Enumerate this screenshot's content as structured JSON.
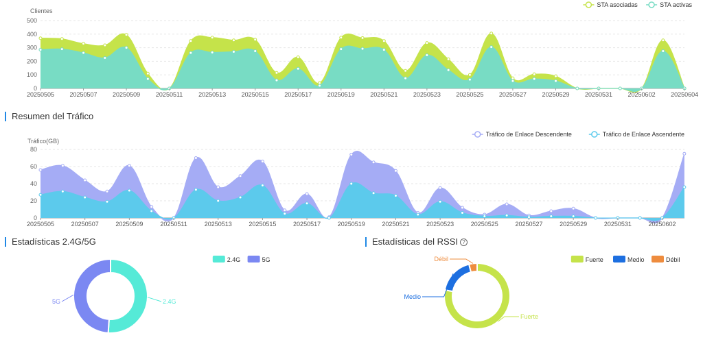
{
  "clients_chart": {
    "ylabel": "Clientes",
    "legend": [
      {
        "name": "STA asociadas",
        "color": "#c5e34a"
      },
      {
        "name": "STA activas",
        "color": "#78dcc4"
      }
    ]
  },
  "traffic_section": {
    "title": "Resumen del Tráfico"
  },
  "traffic_chart": {
    "ylabel": "Tráfico(GB)",
    "legend": [
      {
        "name": "Tráfico de Enlace Descendente",
        "color": "#a5acf5"
      },
      {
        "name": "Tráfico de Enlace Ascendente",
        "color": "#5ccaec"
      }
    ]
  },
  "band_section": {
    "title": "Estadísticas 2.4G/5G",
    "legend": [
      "2.4G",
      "5G"
    ]
  },
  "rssi_section": {
    "title": "Estadísticas del RSSI",
    "help_icon": "question-circle-icon",
    "legend": [
      "Fuerte",
      "Medio",
      "Débil"
    ]
  },
  "chart_data": [
    {
      "type": "area",
      "ylabel": "Clientes",
      "ylim": [
        0,
        500
      ],
      "yticks": [
        0,
        100,
        200,
        300,
        400,
        500
      ],
      "grid": true,
      "legend_position": "top-right",
      "x_tick_labels": [
        "20250505",
        "20250507",
        "20250509",
        "20250511",
        "20250513",
        "20250515",
        "20250517",
        "20250519",
        "20250521",
        "20250523",
        "20250525",
        "20250527",
        "20250529",
        "20250531",
        "20250602",
        "20250604"
      ],
      "x": [
        "20250505",
        "20250506",
        "20250507",
        "20250508",
        "20250509",
        "20250510",
        "20250511",
        "20250512",
        "20250513",
        "20250514",
        "20250515",
        "20250516",
        "20250517",
        "20250518",
        "20250519",
        "20250520",
        "20250521",
        "20250522",
        "20250523",
        "20250524",
        "20250525",
        "20250526",
        "20250527",
        "20250528",
        "20250529",
        "20250530",
        "20250531",
        "20250601",
        "20250602",
        "20250603",
        "20250604"
      ],
      "series": [
        {
          "name": "STA asociadas",
          "color": "#c5e34a",
          "values": [
            370,
            365,
            330,
            318,
            395,
            110,
            0,
            350,
            375,
            355,
            360,
            115,
            230,
            40,
            375,
            372,
            350,
            130,
            335,
            215,
            100,
            405,
            75,
            105,
            90,
            0,
            0,
            0,
            0,
            355,
            0
          ]
        },
        {
          "name": "STA activas",
          "color": "#78dcc4",
          "values": [
            285,
            290,
            262,
            225,
            300,
            70,
            0,
            262,
            265,
            270,
            275,
            60,
            145,
            20,
            290,
            292,
            285,
            75,
            245,
            135,
            65,
            305,
            55,
            70,
            55,
            0,
            0,
            0,
            0,
            275,
            0
          ]
        }
      ]
    },
    {
      "type": "area",
      "ylabel": "Tráfico(GB)",
      "ylim": [
        0,
        80
      ],
      "yticks": [
        0,
        20,
        40,
        60,
        80
      ],
      "grid": true,
      "legend_position": "top-right",
      "x_tick_labels": [
        "20250505",
        "20250507",
        "20250509",
        "20250511",
        "20250513",
        "20250515",
        "20250517",
        "20250519",
        "20250521",
        "20250523",
        "20250525",
        "20250527",
        "20250529",
        "20250531",
        "20250602"
      ],
      "x": [
        "20250505",
        "20250506",
        "20250507",
        "20250508",
        "20250509",
        "20250510",
        "20250511",
        "20250512",
        "20250513",
        "20250514",
        "20250515",
        "20250516",
        "20250517",
        "20250518",
        "20250519",
        "20250520",
        "20250521",
        "20250522",
        "20250523",
        "20250524",
        "20250525",
        "20250526",
        "20250527",
        "20250528",
        "20250529",
        "20250530",
        "20250531",
        "20250601",
        "20250602",
        "20250603"
      ],
      "series": [
        {
          "name": "Tráfico de Enlace Descendente",
          "color": "#a5acf5",
          "values": [
            56,
            61,
            44,
            31,
            61,
            13,
            0,
            70,
            36,
            49,
            66,
            9,
            28,
            1,
            74,
            65,
            55,
            6,
            35,
            12,
            4,
            16,
            3,
            8,
            11,
            0,
            0,
            0,
            0,
            75
          ]
        },
        {
          "name": "Tráfico de Enlace Ascendente",
          "color": "#5ccaec",
          "values": [
            27,
            31,
            24,
            19,
            32,
            8,
            0,
            33,
            20,
            24,
            38,
            5,
            17,
            0,
            40,
            29,
            26,
            4,
            19,
            6,
            2,
            3,
            1,
            2,
            2,
            0,
            0,
            0,
            0,
            36
          ]
        }
      ]
    },
    {
      "type": "pie",
      "donut": true,
      "legend_position": "top-right",
      "labels": [
        "2.4G",
        "5G"
      ],
      "values": [
        51,
        49
      ],
      "colors": [
        "#55ead7",
        "#7b88f2"
      ]
    },
    {
      "type": "pie",
      "donut": true,
      "legend_position": "top-right",
      "labels": [
        "Fuerte",
        "Medio",
        "Débil"
      ],
      "values": [
        78,
        18,
        4
      ],
      "colors": [
        "#c5e34a",
        "#1d6fe0",
        "#ee8c3e"
      ]
    }
  ]
}
